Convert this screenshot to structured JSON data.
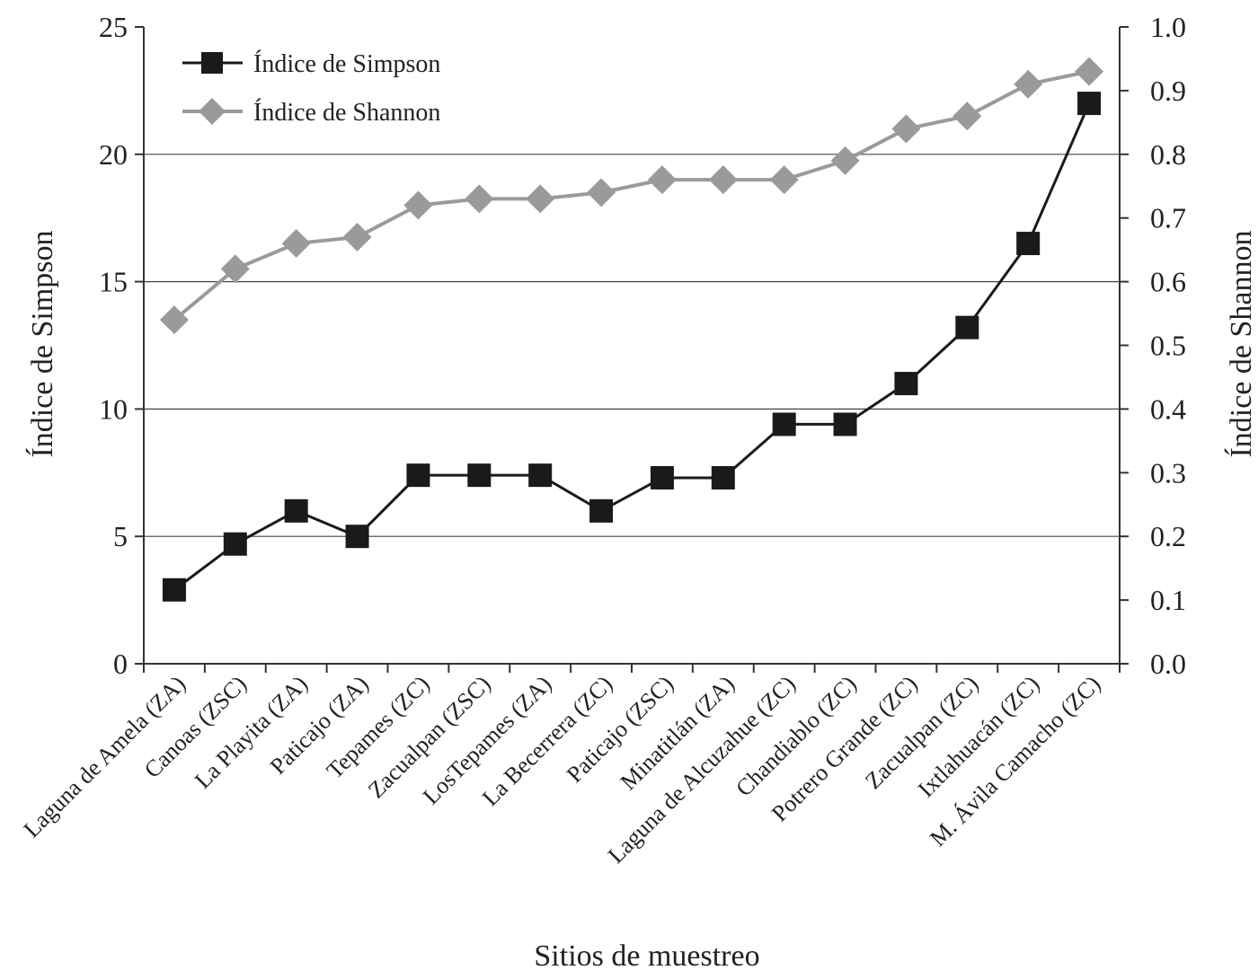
{
  "chart_data": {
    "type": "line",
    "xlabel": "Sitios de muestreo",
    "ylabel_left": "Índice de Simpson",
    "ylabel_right": "Índice de Shannon",
    "ylim_left": [
      0,
      25
    ],
    "ylim_right": [
      0.0,
      1.0
    ],
    "yticks_left": [
      "0",
      "5",
      "10",
      "15",
      "20",
      "25"
    ],
    "yticks_right": [
      "0.0",
      "0.1",
      "0.2",
      "0.3",
      "0.4",
      "0.5",
      "0.6",
      "0.7",
      "0.8",
      "0.9",
      "1.0"
    ],
    "grid": true,
    "legend_position": "top-left",
    "categories": [
      "Laguna de Amela (ZA)",
      "Canoas (ZSC)",
      "La Playita (ZA)",
      "Paticajo (ZA)",
      "Tepames (ZC)",
      "Zacualpan (ZSC)",
      "LosTepames (ZA)",
      "La Becerrera (ZC)",
      "Paticajo (ZSC)",
      "Minatitlán (ZA)",
      "Laguna de Alcuzahue (ZC)",
      "Chandiablo (ZC)",
      "Potrero Grande (ZC)",
      "Zacualpan (ZC)",
      "Ixtlahuacán (ZC)",
      "M. Ávila Camacho (ZC)"
    ],
    "series": [
      {
        "name": "Índice de Simpson",
        "axis": "left",
        "color": "#1a1a1a",
        "marker": "square",
        "values": [
          2.9,
          4.7,
          6.0,
          5.0,
          7.4,
          7.4,
          7.4,
          6.0,
          7.3,
          7.3,
          9.4,
          9.4,
          11.0,
          13.2,
          16.5,
          22.0
        ]
      },
      {
        "name": "Índice de Shannon",
        "axis": "right",
        "color": "#9a9a9a",
        "marker": "diamond",
        "values": [
          0.54,
          0.62,
          0.66,
          0.67,
          0.72,
          0.73,
          0.73,
          0.74,
          0.76,
          0.76,
          0.76,
          0.79,
          0.84,
          0.86,
          0.91,
          0.93
        ]
      }
    ]
  }
}
